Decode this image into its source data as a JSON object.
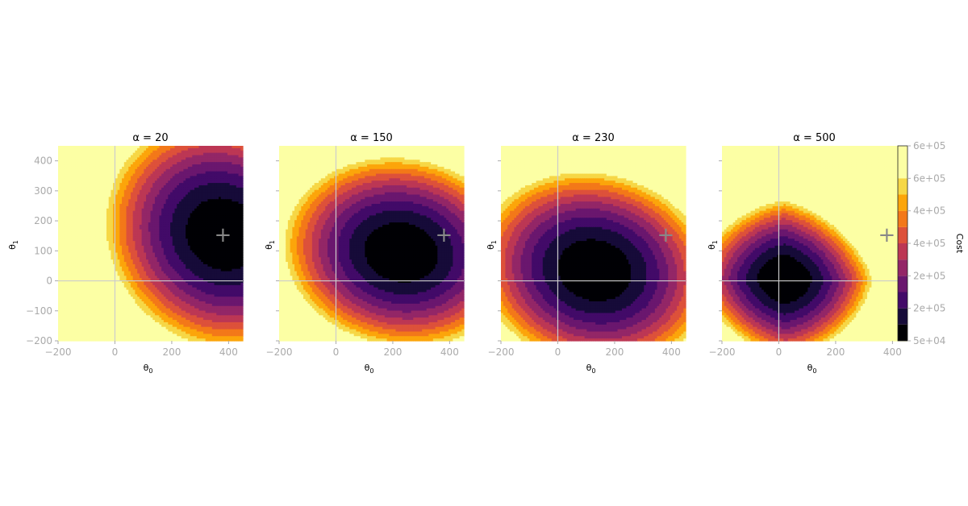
{
  "chart_data": [
    {
      "type": "contour",
      "title": "α = 20",
      "alpha": 20,
      "xlabel": "θ0",
      "ylabel": "θ1",
      "xlim": [
        -200,
        450
      ],
      "ylim": [
        -200,
        450
      ],
      "xticks": [
        "−200",
        "0",
        "200",
        "400"
      ],
      "yticks": [
        "−200",
        "−100",
        "0",
        "100",
        "200",
        "300",
        "400"
      ],
      "marker": {
        "symbol": "+",
        "x": 380,
        "y": 155
      },
      "minimum": {
        "x": 380,
        "y": 155
      },
      "shape": {
        "a": 1.0,
        "b": 1.15,
        "c": 0.2,
        "scale": 1.0
      }
    },
    {
      "type": "contour",
      "title": "α = 150",
      "alpha": 150,
      "xlabel": "θ0",
      "ylabel": "θ1",
      "xlim": [
        -200,
        450
      ],
      "ylim": [
        -200,
        450
      ],
      "xticks": [
        "−200",
        "0",
        "200",
        "400"
      ],
      "yticks": [],
      "marker": {
        "symbol": "+",
        "x": 380,
        "y": 155
      },
      "minimum": {
        "x": 230,
        "y": 95
      },
      "shape": {
        "a": 1.0,
        "b": 1.7,
        "c": 0.2,
        "scale": 1.0
      }
    },
    {
      "type": "contour",
      "title": "α = 230",
      "alpha": 230,
      "xlabel": "θ0",
      "ylabel": "θ1",
      "xlim": [
        -200,
        450
      ],
      "ylim": [
        -200,
        450
      ],
      "xticks": [
        "−200",
        "0",
        "200",
        "400"
      ],
      "yticks": [],
      "marker": {
        "symbol": "+",
        "x": 380,
        "y": 155
      },
      "minimum": {
        "x": 130,
        "y": 35
      },
      "shape": {
        "a": 1.0,
        "b": 1.6,
        "c": 0.25,
        "scale": 1.0
      }
    },
    {
      "type": "contour",
      "title": "α = 500",
      "alpha": 500,
      "xlabel": "θ0",
      "ylabel": "θ1",
      "xlim": [
        -200,
        450
      ],
      "ylim": [
        -200,
        450
      ],
      "xticks": [
        "−200",
        "0",
        "200",
        "400"
      ],
      "yticks": [],
      "marker": {
        "symbol": "+",
        "x": 380,
        "y": 155
      },
      "minimum": {
        "x": 20,
        "y": 5
      },
      "shape": {
        "a": 1.3,
        "b": 1.8,
        "c": 0.2,
        "scale": 1.35,
        "ridge": 2.0
      }
    }
  ],
  "colorbar": {
    "label": "Cost",
    "tick_labels": [
      "5e+04",
      "2e+05",
      "2e+05",
      "4e+05",
      "4e+05",
      "6e+05",
      "6e+05"
    ],
    "levels": [
      50000,
      100000,
      150000,
      200000,
      250000,
      300000,
      350000,
      400000,
      450000,
      500000,
      550000,
      600000,
      650000
    ],
    "colors": [
      "#000004",
      "#160b39",
      "#420a68",
      "#6a176e",
      "#932667",
      "#bc3754",
      "#dd513a",
      "#f37819",
      "#fca50a",
      "#f6d746",
      "#fcffa4"
    ]
  },
  "style": {
    "tick_color": "#aaaaaa",
    "axis_line_color": "#cccccc",
    "marker_color": "#888888"
  }
}
